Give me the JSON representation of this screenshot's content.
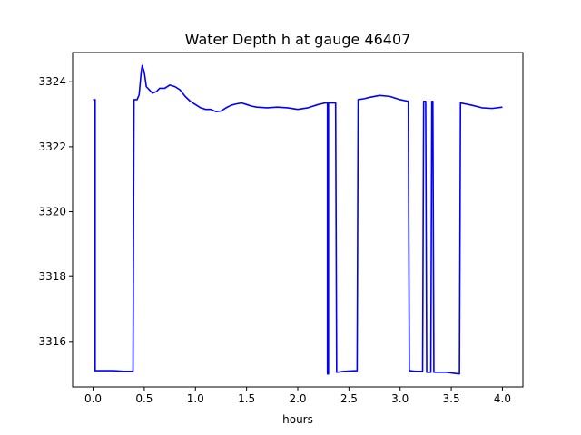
{
  "chart_data": {
    "type": "line",
    "title": "Water Depth h at gauge 46407",
    "xlabel": "hours",
    "ylabel": "",
    "xlim": [
      -0.2,
      4.2
    ],
    "ylim": [
      3314.6,
      3324.9
    ],
    "xticks": [
      0.0,
      0.5,
      1.0,
      1.5,
      2.0,
      2.5,
      3.0,
      3.5,
      4.0
    ],
    "xtick_labels": [
      "0.0",
      "0.5",
      "1.0",
      "1.5",
      "2.0",
      "2.5",
      "3.0",
      "3.5",
      "4.0"
    ],
    "yticks": [
      3316,
      3318,
      3320,
      3322,
      3324
    ],
    "ytick_labels": [
      "3316",
      "3318",
      "3320",
      "3322",
      "3324"
    ],
    "grid": false,
    "legend": "none",
    "series": [
      {
        "color": "#0000ff",
        "points": [
          [
            0.0,
            3323.45
          ],
          [
            0.02,
            3323.45
          ],
          [
            0.02,
            3315.1
          ],
          [
            0.1,
            3315.1
          ],
          [
            0.2,
            3315.1
          ],
          [
            0.3,
            3315.08
          ],
          [
            0.39,
            3315.08
          ],
          [
            0.4,
            3323.45
          ],
          [
            0.43,
            3323.45
          ],
          [
            0.45,
            3323.6
          ],
          [
            0.47,
            3324.3
          ],
          [
            0.48,
            3324.5
          ],
          [
            0.5,
            3324.3
          ],
          [
            0.52,
            3323.85
          ],
          [
            0.55,
            3323.75
          ],
          [
            0.58,
            3323.65
          ],
          [
            0.62,
            3323.7
          ],
          [
            0.65,
            3323.8
          ],
          [
            0.7,
            3323.8
          ],
          [
            0.75,
            3323.9
          ],
          [
            0.8,
            3323.85
          ],
          [
            0.85,
            3323.75
          ],
          [
            0.9,
            3323.55
          ],
          [
            0.95,
            3323.4
          ],
          [
            1.0,
            3323.3
          ],
          [
            1.05,
            3323.2
          ],
          [
            1.1,
            3323.15
          ],
          [
            1.15,
            3323.15
          ],
          [
            1.2,
            3323.08
          ],
          [
            1.25,
            3323.1
          ],
          [
            1.3,
            3323.2
          ],
          [
            1.35,
            3323.28
          ],
          [
            1.4,
            3323.32
          ],
          [
            1.45,
            3323.35
          ],
          [
            1.5,
            3323.3
          ],
          [
            1.55,
            3323.25
          ],
          [
            1.6,
            3323.22
          ],
          [
            1.7,
            3323.2
          ],
          [
            1.8,
            3323.22
          ],
          [
            1.9,
            3323.2
          ],
          [
            2.0,
            3323.15
          ],
          [
            2.1,
            3323.2
          ],
          [
            2.2,
            3323.3
          ],
          [
            2.27,
            3323.35
          ],
          [
            2.29,
            3323.35
          ],
          [
            2.29,
            3315.0
          ],
          [
            2.3,
            3315.0
          ],
          [
            2.3,
            3323.35
          ],
          [
            2.37,
            3323.35
          ],
          [
            2.38,
            3315.05
          ],
          [
            2.45,
            3315.08
          ],
          [
            2.58,
            3315.1
          ],
          [
            2.59,
            3323.45
          ],
          [
            2.65,
            3323.48
          ],
          [
            2.7,
            3323.52
          ],
          [
            2.8,
            3323.58
          ],
          [
            2.9,
            3323.55
          ],
          [
            3.0,
            3323.45
          ],
          [
            3.08,
            3323.4
          ],
          [
            3.09,
            3315.1
          ],
          [
            3.15,
            3315.08
          ],
          [
            3.22,
            3315.08
          ],
          [
            3.23,
            3323.4
          ],
          [
            3.25,
            3323.4
          ],
          [
            3.26,
            3315.05
          ],
          [
            3.3,
            3315.05
          ],
          [
            3.31,
            3323.4
          ],
          [
            3.32,
            3323.4
          ],
          [
            3.33,
            3315.05
          ],
          [
            3.45,
            3315.05
          ],
          [
            3.58,
            3315.0
          ],
          [
            3.59,
            3323.35
          ],
          [
            3.7,
            3323.28
          ],
          [
            3.8,
            3323.2
          ],
          [
            3.9,
            3323.18
          ],
          [
            4.0,
            3323.22
          ]
        ]
      }
    ]
  }
}
